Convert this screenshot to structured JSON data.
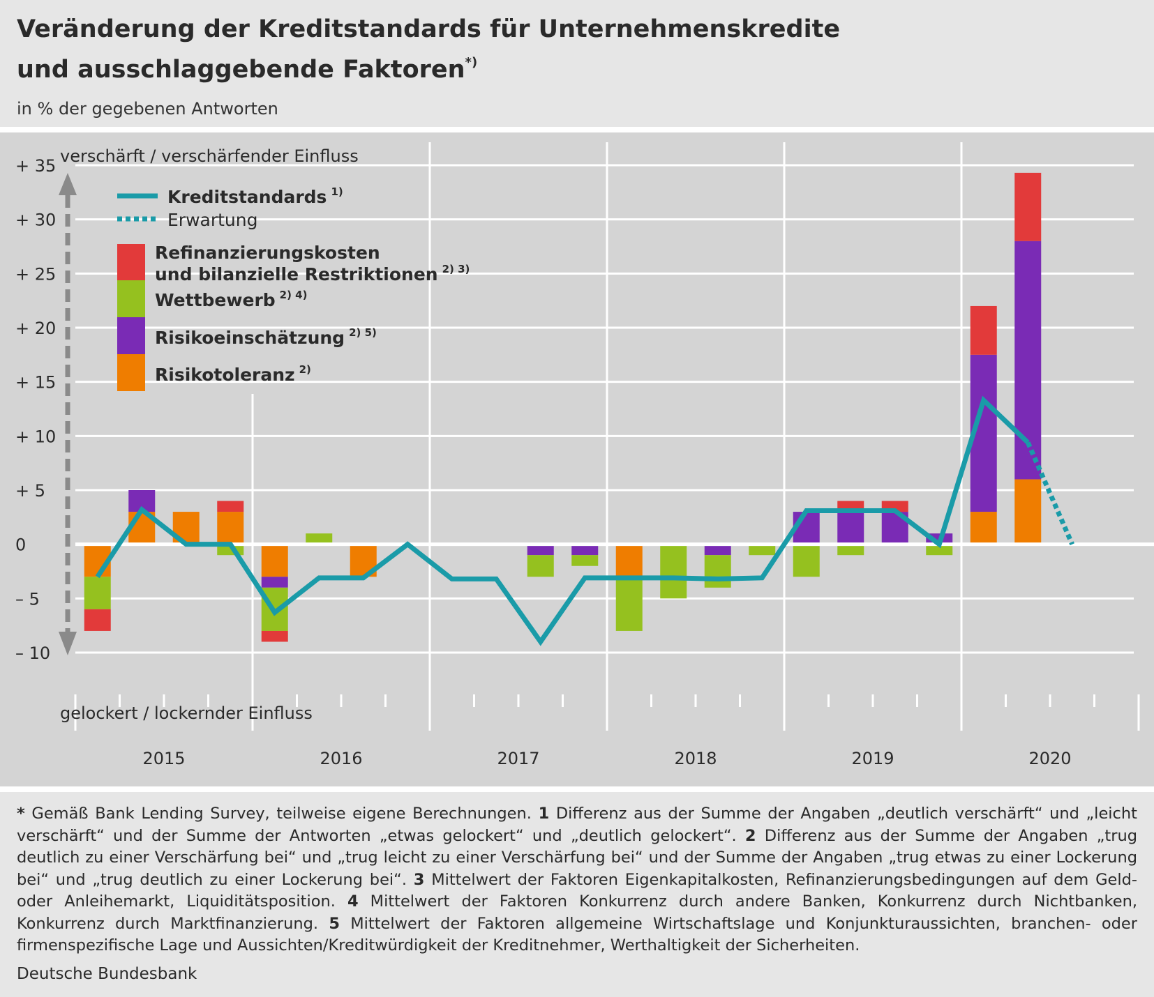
{
  "header": {
    "title_line1": "Veränderung der Kreditstandards für Unternehmenskredite",
    "title_line2": "und ausschlaggebende Faktoren",
    "title_marker": "*)",
    "subtitle": "in % der gegebenen Antworten"
  },
  "colors": {
    "kreditstandards": "#1a9ba8",
    "refinanzierung": "#e23a3a",
    "wettbewerb": "#95c11f",
    "risikoeinschaetzung": "#7a2bb5",
    "risikotoleranz": "#ef7d00",
    "axis_arrow": "#8a8a8a"
  },
  "chart_data": {
    "type": "bar",
    "stacked": true,
    "axis_top_label": "verschärft / verschärfender Einfluss",
    "axis_bottom_label": "gelockert / lockernder Einfluss",
    "ylim": [
      -10,
      35
    ],
    "yticks": [
      {
        "value": 35,
        "label": "+ 35"
      },
      {
        "value": 30,
        "label": "+ 30"
      },
      {
        "value": 25,
        "label": "+ 25"
      },
      {
        "value": 20,
        "label": "+ 20"
      },
      {
        "value": 15,
        "label": "+ 15"
      },
      {
        "value": 10,
        "label": "+ 10"
      },
      {
        "value": 5,
        "label": "+  5"
      },
      {
        "value": 0,
        "label": "0"
      },
      {
        "value": -5,
        "label": "–  5"
      },
      {
        "value": -10,
        "label": "– 10"
      }
    ],
    "years": [
      "2015",
      "2016",
      "2017",
      "2018",
      "2019",
      "2020"
    ],
    "quarters_per_year": 4,
    "legend": [
      {
        "key": "kreditstandards",
        "label": "Kreditstandards",
        "note": "1)",
        "style": "line"
      },
      {
        "key": "erwartung",
        "label": "Erwartung",
        "note": "",
        "style": "dotted"
      },
      {
        "key": "refinanzierung",
        "label_line1": "Refinanzierungskosten",
        "label_line2": "und bilanzielle Restriktionen",
        "note": "2) 3)",
        "style": "bar"
      },
      {
        "key": "wettbewerb",
        "label": "Wettbewerb",
        "note": "2) 4)",
        "style": "bar"
      },
      {
        "key": "risikoeinschaetzung",
        "label": "Risikoeinschätzung",
        "note": "2) 5)",
        "style": "bar"
      },
      {
        "key": "risikotoleranz",
        "label": "Risikotoleranz",
        "note": "2)",
        "style": "bar"
      }
    ],
    "bar_series_order": [
      "risikotoleranz",
      "risikoeinschaetzung",
      "wettbewerb",
      "refinanzierung"
    ],
    "bars": [
      {
        "period": "2015 Q1",
        "risikotoleranz": -3,
        "risikoeinschaetzung": 0,
        "wettbewerb": -3,
        "refinanzierung": -2
      },
      {
        "period": "2015 Q2",
        "risikotoleranz": 3,
        "risikoeinschaetzung": 2,
        "wettbewerb": 0,
        "refinanzierung": 0
      },
      {
        "period": "2015 Q3",
        "risikotoleranz": 3,
        "risikoeinschaetzung": 0,
        "wettbewerb": 0,
        "refinanzierung": 0
      },
      {
        "period": "2015 Q4",
        "risikotoleranz": 3,
        "risikoeinschaetzung": 0,
        "wettbewerb": -1,
        "refinanzierung": 1
      },
      {
        "period": "2016 Q1",
        "risikotoleranz": -3,
        "risikoeinschaetzung": -1,
        "wettbewerb": -4,
        "refinanzierung": -1
      },
      {
        "period": "2016 Q2",
        "risikotoleranz": 0,
        "risikoeinschaetzung": 0,
        "wettbewerb": 1,
        "refinanzierung": 0
      },
      {
        "period": "2016 Q3",
        "risikotoleranz": -3,
        "risikoeinschaetzung": 0,
        "wettbewerb": 0,
        "refinanzierung": 0
      },
      {
        "period": "2016 Q4",
        "risikotoleranz": 0,
        "risikoeinschaetzung": 0,
        "wettbewerb": 0,
        "refinanzierung": 0
      },
      {
        "period": "2017 Q1",
        "risikotoleranz": 0,
        "risikoeinschaetzung": 0,
        "wettbewerb": 0,
        "refinanzierung": 0
      },
      {
        "period": "2017 Q2",
        "risikotoleranz": 0,
        "risikoeinschaetzung": 0,
        "wettbewerb": 0,
        "refinanzierung": 0
      },
      {
        "period": "2017 Q3",
        "risikotoleranz": 0,
        "risikoeinschaetzung": -1,
        "wettbewerb": -2,
        "refinanzierung": 0
      },
      {
        "period": "2017 Q4",
        "risikotoleranz": 0,
        "risikoeinschaetzung": -1,
        "wettbewerb": -1,
        "refinanzierung": 0
      },
      {
        "period": "2018 Q1",
        "risikotoleranz": -3,
        "risikoeinschaetzung": 0,
        "wettbewerb": -5,
        "refinanzierung": 0
      },
      {
        "period": "2018 Q2",
        "risikotoleranz": 0,
        "risikoeinschaetzung": 0,
        "wettbewerb": -5,
        "refinanzierung": 0
      },
      {
        "period": "2018 Q3",
        "risikotoleranz": 0,
        "risikoeinschaetzung": -1,
        "wettbewerb": -3,
        "refinanzierung": 0
      },
      {
        "period": "2018 Q4",
        "risikotoleranz": 0,
        "risikoeinschaetzung": 0,
        "wettbewerb": -1,
        "refinanzierung": 0
      },
      {
        "period": "2019 Q1",
        "risikotoleranz": 0,
        "risikoeinschaetzung": 3,
        "wettbewerb": -3,
        "refinanzierung": 0
      },
      {
        "period": "2019 Q2",
        "risikotoleranz": 0,
        "risikoeinschaetzung": 3,
        "wettbewerb": -1,
        "refinanzierung": 1
      },
      {
        "period": "2019 Q3",
        "risikotoleranz": 0,
        "risikoeinschaetzung": 3,
        "wettbewerb": 0,
        "refinanzierung": 1
      },
      {
        "period": "2019 Q4",
        "risikotoleranz": 0,
        "risikoeinschaetzung": 1,
        "wettbewerb": -1,
        "refinanzierung": 0
      },
      {
        "period": "2020 Q1",
        "risikotoleranz": 3,
        "risikoeinschaetzung": 14.5,
        "wettbewerb": 0,
        "refinanzierung": 4.5
      },
      {
        "period": "2020 Q2",
        "risikotoleranz": 6,
        "risikoeinschaetzung": 22,
        "wettbewerb": 0,
        "refinanzierung": 6.3
      },
      {
        "period": "2020 Q3",
        "risikotoleranz": 0,
        "risikoeinschaetzung": 0,
        "wettbewerb": 0,
        "refinanzierung": 0
      }
    ],
    "kreditstandards": [
      {
        "period": "2015 Q1",
        "value": -3
      },
      {
        "period": "2015 Q2",
        "value": 3.2
      },
      {
        "period": "2015 Q3",
        "value": 0
      },
      {
        "period": "2015 Q4",
        "value": 0
      },
      {
        "period": "2016 Q1",
        "value": -6.3
      },
      {
        "period": "2016 Q2",
        "value": -3.1
      },
      {
        "period": "2016 Q3",
        "value": -3.1
      },
      {
        "period": "2016 Q4",
        "value": 0
      },
      {
        "period": "2017 Q1",
        "value": -3.2
      },
      {
        "period": "2017 Q2",
        "value": -3.2
      },
      {
        "period": "2017 Q3",
        "value": -9
      },
      {
        "period": "2017 Q4",
        "value": -3.1
      },
      {
        "period": "2018 Q1",
        "value": -3.1
      },
      {
        "period": "2018 Q2",
        "value": -3.1
      },
      {
        "period": "2018 Q3",
        "value": -3.2
      },
      {
        "period": "2018 Q4",
        "value": -3.1
      },
      {
        "period": "2019 Q1",
        "value": 3.1
      },
      {
        "period": "2019 Q2",
        "value": 3.1
      },
      {
        "period": "2019 Q3",
        "value": 3.1
      },
      {
        "period": "2019 Q4",
        "value": 0
      },
      {
        "period": "2020 Q1",
        "value": 13.3
      },
      {
        "period": "2020 Q2",
        "value": 9.4
      }
    ],
    "erwartung": [
      {
        "period": "2020 Q2",
        "value": 9.4
      },
      {
        "period": "2020 Q3",
        "value": 0
      }
    ]
  },
  "footnote": {
    "star": "*",
    "star_text": " Gemäß Bank Lending Survey, teilweise eigene Berechnungen. ",
    "n1": "1",
    "t1": " Differenz aus der Summe der Angaben „deutlich verschärft“ und „leicht verschärft“ und der Summe der Antworten „etwas gelockert“ und „deutlich gelockert“. ",
    "n2": "2",
    "t2": " Differenz aus der Summe der Angaben „trug deutlich zu einer Verschärfung bei“ und „trug leicht zu einer Verschärfung bei“ und der Summe der Angaben „trug etwas zu einer Lockerung bei“ und „trug deutlich zu einer Lockerung bei“. ",
    "n3": "3",
    "t3": " Mittelwert der Faktoren Eigenkapitalkosten, Refinanzierungsbedingungen auf dem Geld- oder Anleihemarkt, Liquiditätsposition. ",
    "n4": "4",
    "t4": " Mittelwert der Faktoren Konkurrenz durch andere Banken, Konkurrenz durch Nichtbanken, Konkurrenz durch Marktfinanzierung. ",
    "n5": "5",
    "t5": " Mittelwert der Faktoren allgemeine Wirtschaftslage und Konjunkturaussichten, branchen- oder firmenspezifische Lage und Aussichten/Kreditwürdigkeit der Kreditnehmer, Werthaltigkeit der Sicherheiten."
  },
  "source": "Deutsche Bundesbank"
}
